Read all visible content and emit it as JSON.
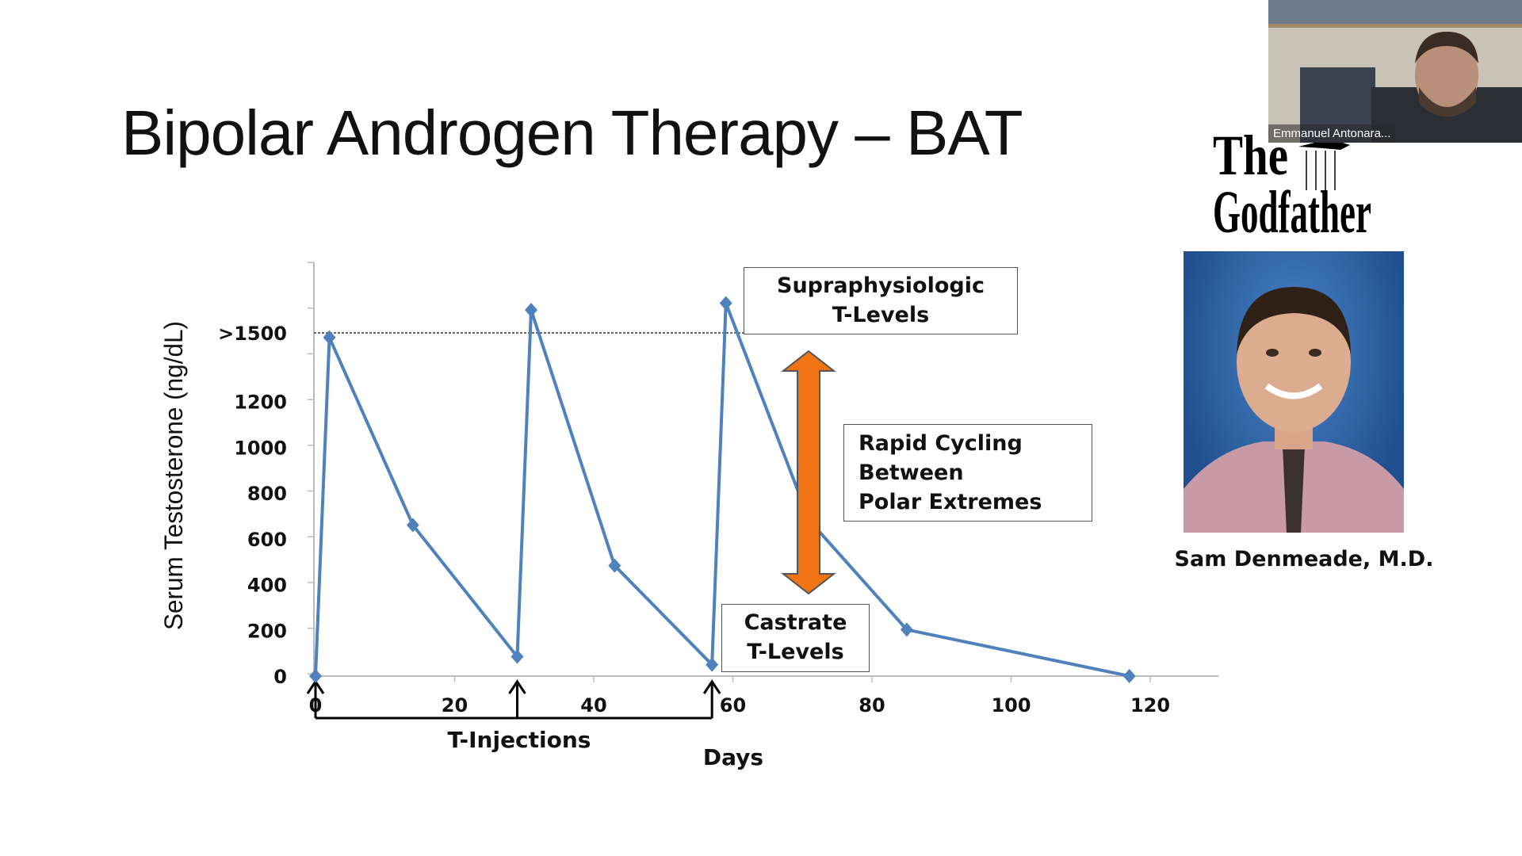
{
  "slide": {
    "title": "Bipolar Androgen Therapy – BAT",
    "logo_text": "The Godfather",
    "photo_caption": "Sam Denmeade, M.D.",
    "annotations": {
      "supra_line1": "Supraphysiologic",
      "supra_line2": "T-Levels",
      "rapid_line1": "Rapid Cycling",
      "rapid_line2": "Between",
      "rapid_line3": "Polar Extremes",
      "castrate_line1": "Castrate",
      "castrate_line2": "T-Levels",
      "injections_label": "T-Injections"
    },
    "colors": {
      "series": "#4f81bd",
      "arrow": "#f07314",
      "threshold": "#666666"
    }
  },
  "webcam": {
    "participant_name": "Emmanuel Antonara..."
  },
  "chart_data": {
    "type": "line",
    "xlabel": "Days",
    "ylabel": "Serum Testosterone (ng/dL)",
    "xlim": [
      0,
      130
    ],
    "ylim": [
      0,
      1850
    ],
    "x_ticks": [
      0,
      20,
      40,
      60,
      80,
      100,
      120
    ],
    "x_tick_labels": [
      "0",
      "20",
      "40",
      "60",
      "80",
      "100",
      "120"
    ],
    "y_ticks": [
      0,
      200,
      400,
      600,
      800,
      1000,
      1200,
      1500
    ],
    "y_tick_labels": [
      "0",
      "200",
      "400",
      "600",
      "800",
      "1000",
      "1200",
      ">1500"
    ],
    "threshold_line": 1500,
    "injection_days": [
      0,
      29,
      57
    ],
    "series": [
      {
        "x": [
          0,
          2,
          14,
          29,
          31,
          43,
          57,
          59,
          71,
          85,
          117
        ],
        "y": [
          0,
          1480,
          660,
          85,
          1600,
          483,
          50,
          1630,
          680,
          203,
          0
        ]
      }
    ]
  }
}
